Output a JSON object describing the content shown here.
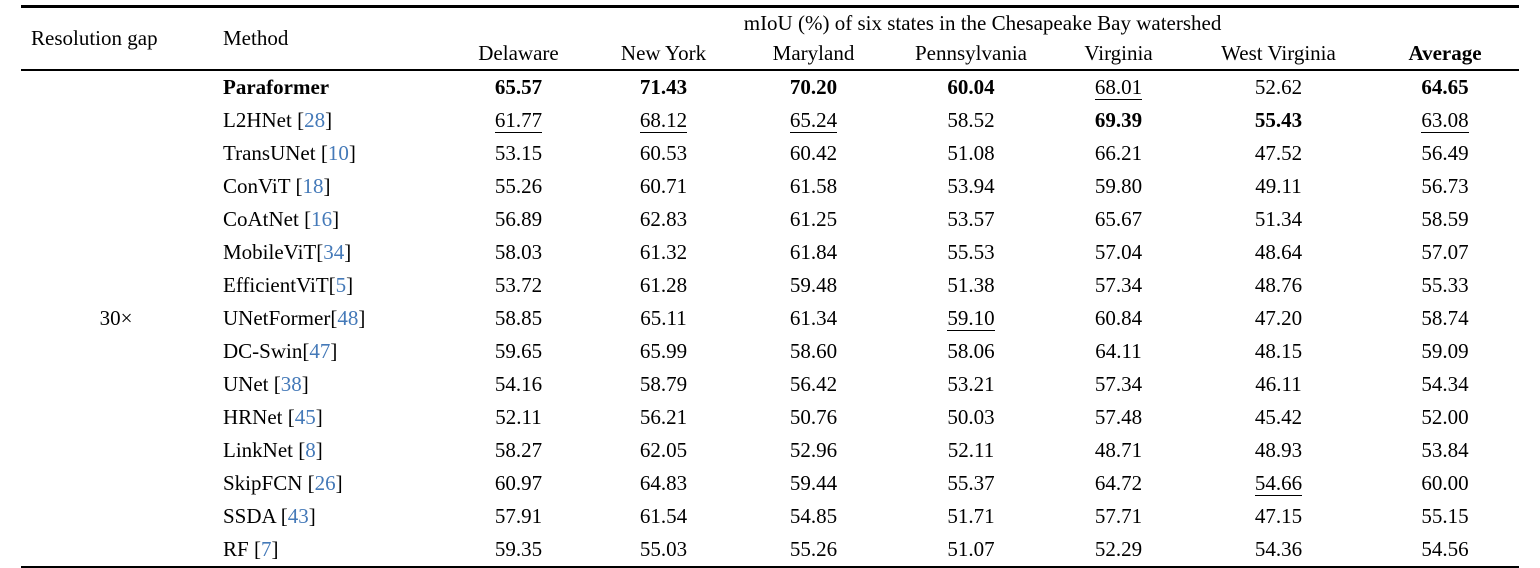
{
  "page": {
    "background_color": "#ffffff",
    "text_color": "#000000",
    "citation_color": "#4479b8"
  },
  "table": {
    "header": {
      "resolution_gap_label": "Resolution gap",
      "method_label": "Method",
      "span_label": "mIoU (%) of six states in the Chesapeake Bay watershed",
      "state_columns": [
        "Delaware",
        "New York",
        "Maryland",
        "Pennsylvania",
        "Virginia",
        "West Virginia",
        "Average"
      ]
    },
    "resolution_gap_value": "30×",
    "rows": [
      {
        "method": "Paraformer",
        "method_bold": true,
        "cite_open": "",
        "cite": "",
        "cite_close": "",
        "values": [
          "65.57",
          "71.43",
          "70.20",
          "60.04",
          "68.01",
          "52.62",
          "64.65"
        ],
        "styles": [
          "b",
          "b",
          "b",
          "b",
          "u",
          "",
          "b"
        ]
      },
      {
        "method": "L2HNet",
        "method_bold": false,
        "cite_open": " [",
        "cite": "28",
        "cite_close": "]",
        "values": [
          "61.77",
          "68.12",
          "65.24",
          "58.52",
          "69.39",
          "55.43",
          "63.08"
        ],
        "styles": [
          "u",
          "u",
          "u",
          "",
          "b",
          "b",
          "u"
        ]
      },
      {
        "method": "TransUNet",
        "method_bold": false,
        "cite_open": " [",
        "cite": "10",
        "cite_close": "]",
        "values": [
          "53.15",
          "60.53",
          "60.42",
          "51.08",
          "66.21",
          "47.52",
          "56.49"
        ],
        "styles": [
          "",
          "",
          "",
          "",
          "",
          "",
          ""
        ]
      },
      {
        "method": "ConViT",
        "method_bold": false,
        "cite_open": " [",
        "cite": "18",
        "cite_close": "]",
        "values": [
          "55.26",
          "60.71",
          "61.58",
          "53.94",
          "59.80",
          "49.11",
          "56.73"
        ],
        "styles": [
          "",
          "",
          "",
          "",
          "",
          "",
          ""
        ]
      },
      {
        "method": "CoAtNet",
        "method_bold": false,
        "cite_open": " [",
        "cite": "16",
        "cite_close": "]",
        "values": [
          "56.89",
          "62.83",
          "61.25",
          "53.57",
          "65.67",
          "51.34",
          "58.59"
        ],
        "styles": [
          "",
          "",
          "",
          "",
          "",
          "",
          ""
        ]
      },
      {
        "method": "MobileViT",
        "method_bold": false,
        "cite_open": "[",
        "cite": "34",
        "cite_close": "]",
        "values": [
          "58.03",
          "61.32",
          "61.84",
          "55.53",
          "57.04",
          "48.64",
          "57.07"
        ],
        "styles": [
          "",
          "",
          "",
          "",
          "",
          "",
          ""
        ]
      },
      {
        "method": "EfficientViT",
        "method_bold": false,
        "cite_open": "[",
        "cite": "5",
        "cite_close": "]",
        "values": [
          "53.72",
          "61.28",
          "59.48",
          "51.38",
          "57.34",
          "48.76",
          "55.33"
        ],
        "styles": [
          "",
          "",
          "",
          "",
          "",
          "",
          ""
        ]
      },
      {
        "method": "UNetFormer",
        "method_bold": false,
        "cite_open": "[",
        "cite": "48",
        "cite_close": "]",
        "values": [
          "58.85",
          "65.11",
          "61.34",
          "59.10",
          "60.84",
          "47.20",
          "58.74"
        ],
        "styles": [
          "",
          "",
          "",
          "u",
          "",
          "",
          ""
        ]
      },
      {
        "method": "DC-Swin",
        "method_bold": false,
        "cite_open": "[",
        "cite": "47",
        "cite_close": "]",
        "values": [
          "59.65",
          "65.99",
          "58.60",
          "58.06",
          "64.11",
          "48.15",
          "59.09"
        ],
        "styles": [
          "",
          "",
          "",
          "",
          "",
          "",
          ""
        ]
      },
      {
        "method": "UNet",
        "method_bold": false,
        "cite_open": " [",
        "cite": "38",
        "cite_close": "]",
        "values": [
          "54.16",
          "58.79",
          "56.42",
          "53.21",
          "57.34",
          "46.11",
          "54.34"
        ],
        "styles": [
          "",
          "",
          "",
          "",
          "",
          "",
          ""
        ]
      },
      {
        "method": "HRNet",
        "method_bold": false,
        "cite_open": " [",
        "cite": "45",
        "cite_close": "]",
        "values": [
          "52.11",
          "56.21",
          "50.76",
          "50.03",
          "57.48",
          "45.42",
          "52.00"
        ],
        "styles": [
          "",
          "",
          "",
          "",
          "",
          "",
          ""
        ]
      },
      {
        "method": "LinkNet",
        "method_bold": false,
        "cite_open": " [",
        "cite": "8",
        "cite_close": "]",
        "values": [
          "58.27",
          "62.05",
          "52.96",
          "52.11",
          "48.71",
          "48.93",
          "53.84"
        ],
        "styles": [
          "",
          "",
          "",
          "",
          "",
          "",
          ""
        ]
      },
      {
        "method": "SkipFCN",
        "method_bold": false,
        "cite_open": " [",
        "cite": "26",
        "cite_close": "]",
        "values": [
          "60.97",
          "64.83",
          "59.44",
          "55.37",
          "64.72",
          "54.66",
          "60.00"
        ],
        "styles": [
          "",
          "",
          "",
          "",
          "",
          "u",
          ""
        ]
      },
      {
        "method": "SSDA",
        "method_bold": false,
        "cite_open": " [",
        "cite": "43",
        "cite_close": "]",
        "values": [
          "57.91",
          "61.54",
          "54.85",
          "51.71",
          "57.71",
          "47.15",
          "55.15"
        ],
        "styles": [
          "",
          "",
          "",
          "",
          "",
          "",
          ""
        ]
      },
      {
        "method": "RF",
        "method_bold": false,
        "cite_open": " [",
        "cite": "7",
        "cite_close": "]",
        "values": [
          "59.35",
          "55.03",
          "55.26",
          "51.07",
          "52.29",
          "54.36",
          "54.56"
        ],
        "styles": [
          "",
          "",
          "",
          "",
          "",
          "",
          ""
        ]
      }
    ]
  }
}
